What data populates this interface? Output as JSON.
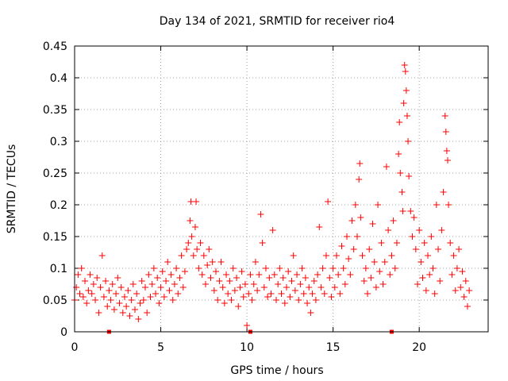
{
  "chart_data": {
    "type": "scatter",
    "title": "Day 134 of 2021, SRMTID for receiver rio4",
    "xlabel": "GPS time / hours",
    "ylabel": "SRMTID / TECUs",
    "xlim": [
      0,
      24
    ],
    "ylim": [
      0,
      0.45
    ],
    "xticks": [
      0,
      5,
      10,
      15,
      20
    ],
    "yticks": [
      0,
      0.05,
      0.1,
      0.15,
      0.2,
      0.25,
      0.3,
      0.35,
      0.4,
      0.45
    ],
    "xtick_labels": [
      "0",
      "5",
      "10",
      "15",
      "20"
    ],
    "ytick_labels": [
      "0",
      "0.05",
      "0.1",
      "0.15",
      "0.2",
      "0.25",
      "0.3",
      "0.35",
      "0.4",
      "0.45"
    ],
    "grid": true,
    "marker": "+",
    "color": "#ff0000",
    "gap_markers_x": [
      2.0,
      10.2,
      18.4
    ],
    "series": [
      {
        "name": "SRMTID",
        "points": [
          [
            0.0,
            0.05
          ],
          [
            0.1,
            0.07
          ],
          [
            0.2,
            0.09
          ],
          [
            0.3,
            0.06
          ],
          [
            0.4,
            0.1
          ],
          [
            0.5,
            0.055
          ],
          [
            0.6,
            0.08
          ],
          [
            0.7,
            0.045
          ],
          [
            0.8,
            0.065
          ],
          [
            0.9,
            0.09
          ],
          [
            1.0,
            0.06
          ],
          [
            1.1,
            0.075
          ],
          [
            1.2,
            0.05
          ],
          [
            1.3,
            0.085
          ],
          [
            1.4,
            0.03
          ],
          [
            1.5,
            0.07
          ],
          [
            1.6,
            0.12
          ],
          [
            1.7,
            0.055
          ],
          [
            1.8,
            0.08
          ],
          [
            1.9,
            0.04
          ],
          [
            2.0,
            0.065
          ],
          [
            2.1,
            0.05
          ],
          [
            2.2,
            0.075
          ],
          [
            2.3,
            0.035
          ],
          [
            2.4,
            0.06
          ],
          [
            2.5,
            0.085
          ],
          [
            2.6,
            0.045
          ],
          [
            2.7,
            0.07
          ],
          [
            2.8,
            0.03
          ],
          [
            2.9,
            0.055
          ],
          [
            3.0,
            0.04
          ],
          [
            3.1,
            0.065
          ],
          [
            3.2,
            0.025
          ],
          [
            3.3,
            0.05
          ],
          [
            3.4,
            0.075
          ],
          [
            3.5,
            0.035
          ],
          [
            3.6,
            0.06
          ],
          [
            3.7,
            0.02
          ],
          [
            3.8,
            0.045
          ],
          [
            3.9,
            0.08
          ],
          [
            4.0,
            0.05
          ],
          [
            4.1,
            0.07
          ],
          [
            4.2,
            0.03
          ],
          [
            4.3,
            0.09
          ],
          [
            4.4,
            0.055
          ],
          [
            4.5,
            0.075
          ],
          [
            4.6,
            0.1
          ],
          [
            4.7,
            0.06
          ],
          [
            4.8,
            0.085
          ],
          [
            4.9,
            0.045
          ],
          [
            5.0,
            0.07
          ],
          [
            5.1,
            0.095
          ],
          [
            5.2,
            0.055
          ],
          [
            5.3,
            0.08
          ],
          [
            5.4,
            0.11
          ],
          [
            5.5,
            0.065
          ],
          [
            5.6,
            0.09
          ],
          [
            5.7,
            0.05
          ],
          [
            5.8,
            0.075
          ],
          [
            5.9,
            0.1
          ],
          [
            6.0,
            0.06
          ],
          [
            6.1,
            0.085
          ],
          [
            6.2,
            0.12
          ],
          [
            6.3,
            0.07
          ],
          [
            6.4,
            0.095
          ],
          [
            6.5,
            0.13
          ],
          [
            6.6,
            0.14
          ],
          [
            6.7,
            0.175
          ],
          [
            6.75,
            0.205
          ],
          [
            6.8,
            0.15
          ],
          [
            6.9,
            0.12
          ],
          [
            7.0,
            0.165
          ],
          [
            7.05,
            0.205
          ],
          [
            7.1,
            0.13
          ],
          [
            7.2,
            0.1
          ],
          [
            7.3,
            0.14
          ],
          [
            7.4,
            0.09
          ],
          [
            7.5,
            0.12
          ],
          [
            7.6,
            0.075
          ],
          [
            7.7,
            0.105
          ],
          [
            7.8,
            0.13
          ],
          [
            7.9,
            0.085
          ],
          [
            8.0,
            0.11
          ],
          [
            8.1,
            0.065
          ],
          [
            8.2,
            0.095
          ],
          [
            8.3,
            0.05
          ],
          [
            8.4,
            0.08
          ],
          [
            8.5,
            0.11
          ],
          [
            8.6,
            0.07
          ],
          [
            8.7,
            0.045
          ],
          [
            8.8,
            0.09
          ],
          [
            8.9,
            0.06
          ],
          [
            9.0,
            0.08
          ],
          [
            9.1,
            0.05
          ],
          [
            9.2,
            0.1
          ],
          [
            9.3,
            0.065
          ],
          [
            9.4,
            0.085
          ],
          [
            9.5,
            0.04
          ],
          [
            9.6,
            0.07
          ],
          [
            9.7,
            0.095
          ],
          [
            9.8,
            0.055
          ],
          [
            9.9,
            0.075
          ],
          [
            10.0,
            0.01
          ],
          [
            10.1,
            0.06
          ],
          [
            10.2,
            0.09
          ],
          [
            10.3,
            0.05
          ],
          [
            10.4,
            0.075
          ],
          [
            10.5,
            0.11
          ],
          [
            10.6,
            0.065
          ],
          [
            10.7,
            0.09
          ],
          [
            10.8,
            0.185
          ],
          [
            10.9,
            0.14
          ],
          [
            11.0,
            0.07
          ],
          [
            11.1,
            0.1
          ],
          [
            11.2,
            0.055
          ],
          [
            11.3,
            0.085
          ],
          [
            11.4,
            0.06
          ],
          [
            11.5,
            0.16
          ],
          [
            11.6,
            0.09
          ],
          [
            11.7,
            0.05
          ],
          [
            11.8,
            0.075
          ],
          [
            11.9,
            0.1
          ],
          [
            12.0,
            0.06
          ],
          [
            12.1,
            0.085
          ],
          [
            12.2,
            0.045
          ],
          [
            12.3,
            0.07
          ],
          [
            12.4,
            0.095
          ],
          [
            12.5,
            0.055
          ],
          [
            12.6,
            0.08
          ],
          [
            12.7,
            0.12
          ],
          [
            12.8,
            0.065
          ],
          [
            12.9,
            0.09
          ],
          [
            13.0,
            0.05
          ],
          [
            13.1,
            0.075
          ],
          [
            13.2,
            0.1
          ],
          [
            13.3,
            0.06
          ],
          [
            13.4,
            0.085
          ],
          [
            13.5,
            0.045
          ],
          [
            13.6,
            0.07
          ],
          [
            13.7,
            0.03
          ],
          [
            13.8,
            0.06
          ],
          [
            13.9,
            0.08
          ],
          [
            14.0,
            0.05
          ],
          [
            14.1,
            0.09
          ],
          [
            14.2,
            0.165
          ],
          [
            14.3,
            0.07
          ],
          [
            14.4,
            0.1
          ],
          [
            14.5,
            0.06
          ],
          [
            14.6,
            0.12
          ],
          [
            14.7,
            0.205
          ],
          [
            14.8,
            0.085
          ],
          [
            14.9,
            0.055
          ],
          [
            15.0,
            0.1
          ],
          [
            15.1,
            0.07
          ],
          [
            15.2,
            0.12
          ],
          [
            15.3,
            0.09
          ],
          [
            15.4,
            0.06
          ],
          [
            15.5,
            0.135
          ],
          [
            15.6,
            0.1
          ],
          [
            15.7,
            0.075
          ],
          [
            15.8,
            0.15
          ],
          [
            15.9,
            0.115
          ],
          [
            16.0,
            0.09
          ],
          [
            16.1,
            0.175
          ],
          [
            16.2,
            0.13
          ],
          [
            16.3,
            0.2
          ],
          [
            16.4,
            0.15
          ],
          [
            16.5,
            0.24
          ],
          [
            16.55,
            0.265
          ],
          [
            16.6,
            0.18
          ],
          [
            16.7,
            0.12
          ],
          [
            16.8,
            0.08
          ],
          [
            16.9,
            0.1
          ],
          [
            17.0,
            0.06
          ],
          [
            17.1,
            0.13
          ],
          [
            17.2,
            0.085
          ],
          [
            17.3,
            0.17
          ],
          [
            17.4,
            0.11
          ],
          [
            17.5,
            0.07
          ],
          [
            17.6,
            0.2
          ],
          [
            17.7,
            0.095
          ],
          [
            17.8,
            0.14
          ],
          [
            17.9,
            0.075
          ],
          [
            18.0,
            0.11
          ],
          [
            18.1,
            0.26
          ],
          [
            18.2,
            0.16
          ],
          [
            18.3,
            0.09
          ],
          [
            18.4,
            0.12
          ],
          [
            18.5,
            0.175
          ],
          [
            18.6,
            0.1
          ],
          [
            18.7,
            0.14
          ],
          [
            18.8,
            0.28
          ],
          [
            18.85,
            0.33
          ],
          [
            18.9,
            0.25
          ],
          [
            19.0,
            0.22
          ],
          [
            19.05,
            0.19
          ],
          [
            19.1,
            0.36
          ],
          [
            19.15,
            0.42
          ],
          [
            19.2,
            0.41
          ],
          [
            19.25,
            0.38
          ],
          [
            19.3,
            0.34
          ],
          [
            19.35,
            0.3
          ],
          [
            19.4,
            0.245
          ],
          [
            19.5,
            0.19
          ],
          [
            19.6,
            0.15
          ],
          [
            19.7,
            0.18
          ],
          [
            19.8,
            0.13
          ],
          [
            19.9,
            0.075
          ],
          [
            20.0,
            0.16
          ],
          [
            20.1,
            0.11
          ],
          [
            20.2,
            0.085
          ],
          [
            20.3,
            0.14
          ],
          [
            20.4,
            0.065
          ],
          [
            20.5,
            0.12
          ],
          [
            20.6,
            0.09
          ],
          [
            20.7,
            0.15
          ],
          [
            20.8,
            0.1
          ],
          [
            20.9,
            0.06
          ],
          [
            21.0,
            0.2
          ],
          [
            21.1,
            0.13
          ],
          [
            21.2,
            0.08
          ],
          [
            21.3,
            0.16
          ],
          [
            21.4,
            0.22
          ],
          [
            21.5,
            0.34
          ],
          [
            21.55,
            0.315
          ],
          [
            21.6,
            0.285
          ],
          [
            21.65,
            0.27
          ],
          [
            21.7,
            0.2
          ],
          [
            21.8,
            0.14
          ],
          [
            21.9,
            0.09
          ],
          [
            22.0,
            0.12
          ],
          [
            22.1,
            0.065
          ],
          [
            22.2,
            0.1
          ],
          [
            22.3,
            0.13
          ],
          [
            22.4,
            0.07
          ],
          [
            22.5,
            0.095
          ],
          [
            22.6,
            0.055
          ],
          [
            22.7,
            0.08
          ],
          [
            22.8,
            0.04
          ],
          [
            22.9,
            0.065
          ]
        ]
      }
    ]
  }
}
